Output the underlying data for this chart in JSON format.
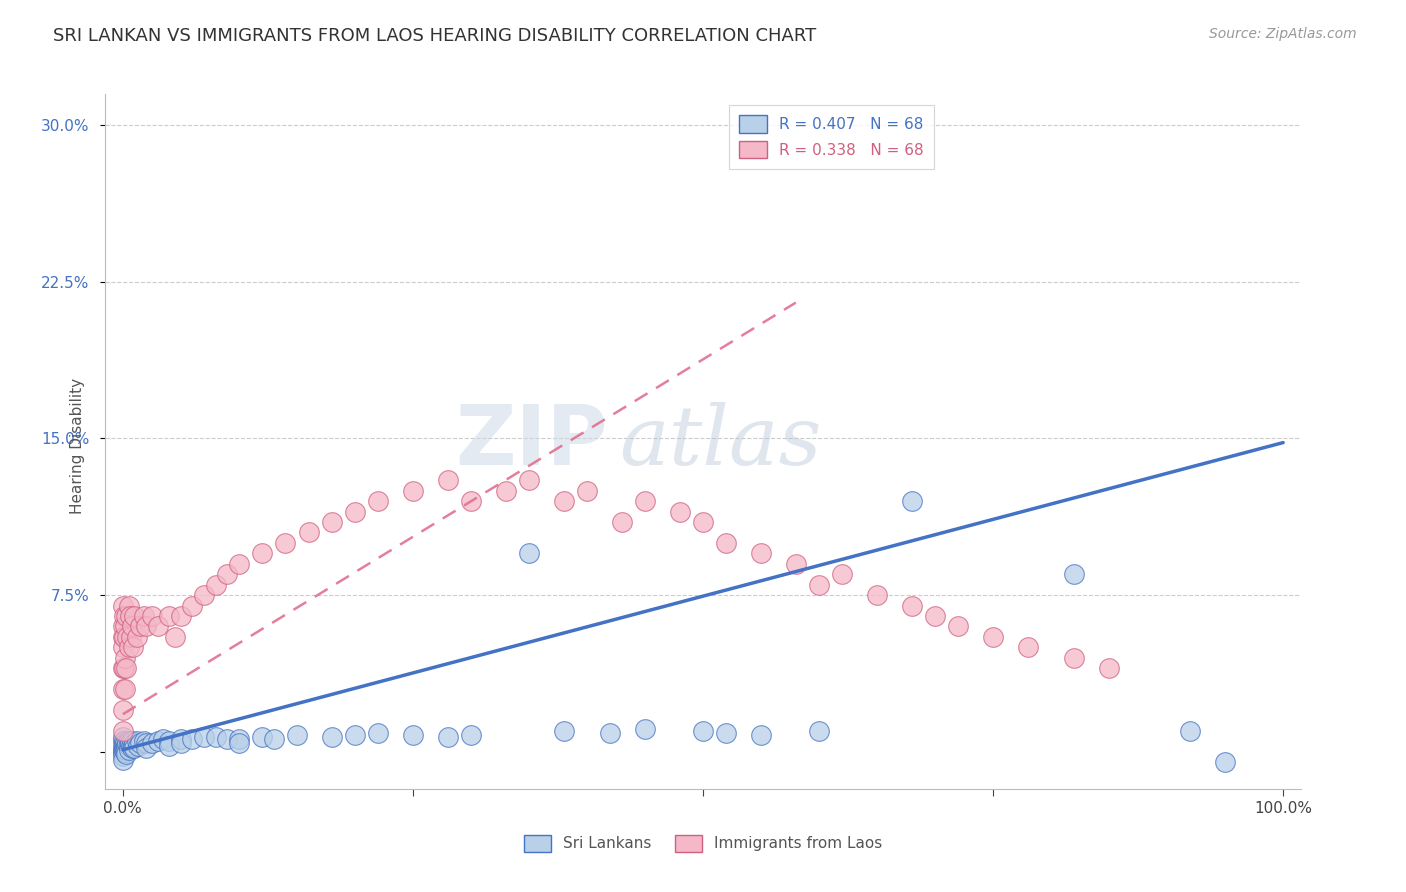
{
  "title": "SRI LANKAN VS IMMIGRANTS FROM LAOS HEARING DISABILITY CORRELATION CHART",
  "source": "Source: ZipAtlas.com",
  "ylabel": "Hearing Disability",
  "ytick_labels": [
    "",
    "7.5%",
    "15.0%",
    "22.5%",
    "30.0%"
  ],
  "ytick_vals": [
    0.0,
    0.075,
    0.15,
    0.225,
    0.3
  ],
  "xlim": [
    -0.015,
    1.015
  ],
  "ylim": [
    -0.018,
    0.315
  ],
  "R_blue": 0.407,
  "N_blue": 68,
  "R_pink": 0.338,
  "N_pink": 68,
  "blue_fill": "#b8d0e8",
  "blue_edge": "#4472c4",
  "pink_fill": "#f4b8c8",
  "pink_edge": "#d06080",
  "pink_line": "#e07090",
  "label_blue": "Sri Lankans",
  "label_pink": "Immigrants from Laos",
  "title_fontsize": 13,
  "legend_fontsize": 11,
  "blue_trend": [
    0.0,
    1.0,
    0.001,
    0.148
  ],
  "pink_trend": [
    0.0,
    0.58,
    0.018,
    0.215
  ],
  "sri_lanka_x": [
    0.0,
    0.0,
    0.0,
    0.0,
    0.0,
    0.0,
    0.0,
    0.0,
    0.001,
    0.001,
    0.001,
    0.002,
    0.002,
    0.002,
    0.003,
    0.003,
    0.003,
    0.004,
    0.005,
    0.005,
    0.005,
    0.006,
    0.007,
    0.008,
    0.008,
    0.009,
    0.01,
    0.01,
    0.012,
    0.013,
    0.015,
    0.018,
    0.02,
    0.02,
    0.025,
    0.03,
    0.035,
    0.04,
    0.04,
    0.05,
    0.05,
    0.06,
    0.07,
    0.08,
    0.09,
    0.1,
    0.1,
    0.12,
    0.13,
    0.15,
    0.18,
    0.2,
    0.22,
    0.25,
    0.28,
    0.3,
    0.35,
    0.38,
    0.42,
    0.45,
    0.5,
    0.52,
    0.55,
    0.6,
    0.68,
    0.82,
    0.92,
    0.95
  ],
  "sri_lanka_y": [
    0.005,
    0.003,
    0.001,
    0.0,
    0.0,
    -0.002,
    -0.004,
    0.007,
    0.005,
    0.003,
    0.001,
    0.004,
    0.002,
    0.0,
    0.003,
    0.001,
    -0.001,
    0.004,
    0.005,
    0.003,
    0.001,
    0.004,
    0.003,
    0.005,
    0.002,
    0.003,
    0.004,
    0.002,
    0.005,
    0.003,
    0.004,
    0.005,
    0.004,
    0.002,
    0.004,
    0.005,
    0.006,
    0.005,
    0.003,
    0.006,
    0.004,
    0.006,
    0.007,
    0.007,
    0.006,
    0.006,
    0.004,
    0.007,
    0.006,
    0.008,
    0.007,
    0.008,
    0.009,
    0.008,
    0.007,
    0.008,
    0.095,
    0.01,
    0.009,
    0.011,
    0.01,
    0.009,
    0.008,
    0.01,
    0.12,
    0.085,
    0.01,
    -0.005
  ],
  "laos_x": [
    0.0,
    0.0,
    0.0,
    0.0,
    0.0,
    0.0,
    0.0,
    0.0,
    0.001,
    0.001,
    0.001,
    0.002,
    0.002,
    0.002,
    0.003,
    0.003,
    0.004,
    0.005,
    0.005,
    0.006,
    0.007,
    0.008,
    0.009,
    0.01,
    0.012,
    0.015,
    0.018,
    0.02,
    0.025,
    0.03,
    0.04,
    0.045,
    0.05,
    0.06,
    0.07,
    0.08,
    0.09,
    0.1,
    0.12,
    0.14,
    0.16,
    0.18,
    0.2,
    0.22,
    0.25,
    0.28,
    0.3,
    0.33,
    0.35,
    0.38,
    0.4,
    0.43,
    0.45,
    0.48,
    0.5,
    0.52,
    0.55,
    0.58,
    0.6,
    0.62,
    0.65,
    0.68,
    0.7,
    0.72,
    0.75,
    0.78,
    0.82,
    0.85
  ],
  "laos_y": [
    0.07,
    0.06,
    0.055,
    0.05,
    0.04,
    0.03,
    0.02,
    0.01,
    0.065,
    0.055,
    0.04,
    0.06,
    0.045,
    0.03,
    0.065,
    0.04,
    0.055,
    0.07,
    0.05,
    0.065,
    0.055,
    0.06,
    0.05,
    0.065,
    0.055,
    0.06,
    0.065,
    0.06,
    0.065,
    0.06,
    0.065,
    0.055,
    0.065,
    0.07,
    0.075,
    0.08,
    0.085,
    0.09,
    0.095,
    0.1,
    0.105,
    0.11,
    0.115,
    0.12,
    0.125,
    0.13,
    0.12,
    0.125,
    0.13,
    0.12,
    0.125,
    0.11,
    0.12,
    0.115,
    0.11,
    0.1,
    0.095,
    0.09,
    0.08,
    0.085,
    0.075,
    0.07,
    0.065,
    0.06,
    0.055,
    0.05,
    0.045,
    0.04
  ]
}
